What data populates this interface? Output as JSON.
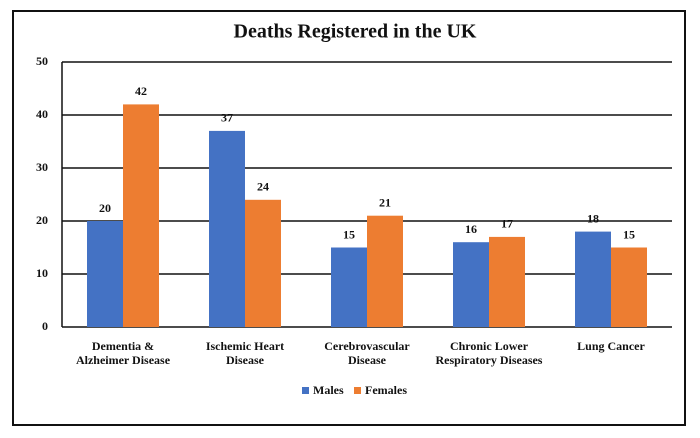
{
  "chart_data": {
    "type": "bar",
    "title": "Deaths Registered in the UK",
    "categories": [
      "Dementia & Alzheimer Disease",
      "Ischemic Heart Disease",
      "Cerebrovascular Disease",
      "Chronic Lower Respiratory Diseases",
      "Lung Cancer"
    ],
    "series": [
      {
        "name": "Males",
        "color": "#4472c4",
        "values": [
          20,
          37,
          15,
          16,
          18
        ]
      },
      {
        "name": "Females",
        "color": "#ed7d31",
        "values": [
          42,
          24,
          21,
          17,
          15
        ]
      }
    ],
    "ylim": [
      0,
      50
    ],
    "yticks": [
      0,
      10,
      20,
      30,
      40,
      50
    ],
    "grid": true
  }
}
